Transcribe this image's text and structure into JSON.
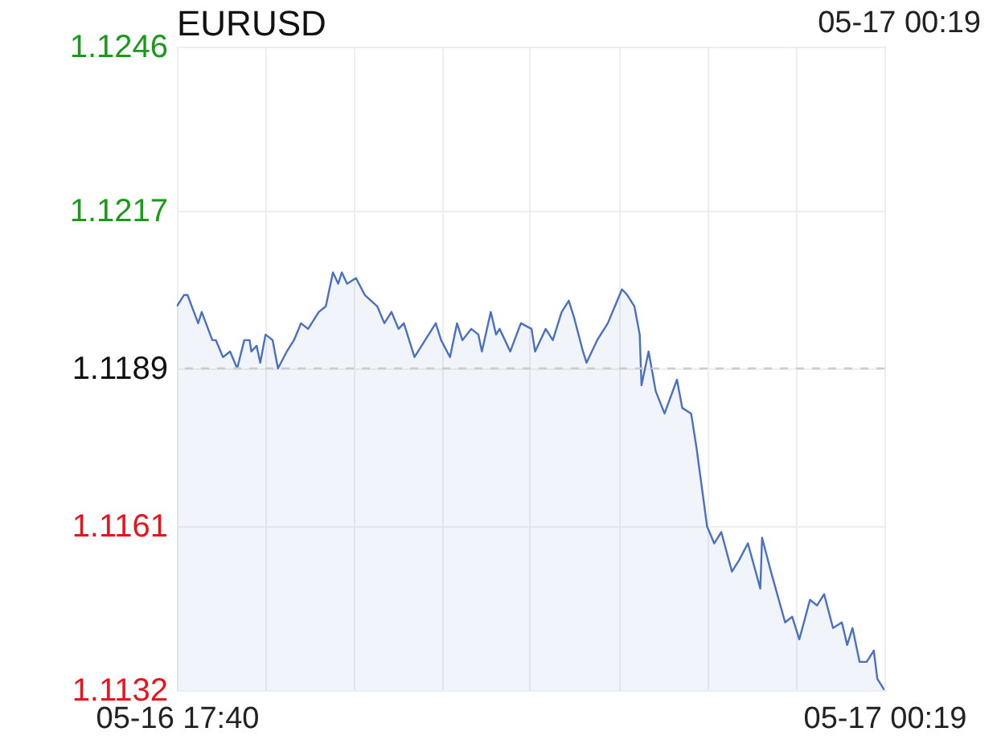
{
  "chart_data": {
    "type": "area",
    "title": "EURUSD",
    "annotations": [
      "05-17 00:19"
    ],
    "x": [
      "--05-16T17:40",
      "--05-16T17:44",
      "--05-16T17:46",
      "--05-16T17:52",
      "--05-16T17:54",
      "--05-16T18:00",
      "--05-16T18:02",
      "--05-16T18:06",
      "--05-16T18:10",
      "--05-16T18:14",
      "--05-16T18:18",
      "--05-16T18:21",
      "--05-16T18:22",
      "--05-16T18:25",
      "--05-16T18:27",
      "--05-16T18:30",
      "--05-16T18:34",
      "--05-16T18:37",
      "--05-16T18:42",
      "--05-16T18:46",
      "--05-16T18:50",
      "--05-16T18:54",
      "--05-16T19:00",
      "--05-16T19:04",
      "--05-16T19:08",
      "--05-16T19:11",
      "--05-16T19:13",
      "--05-16T19:16",
      "--05-16T19:21",
      "--05-16T19:26",
      "--05-16T19:33",
      "--05-16T19:37",
      "--05-16T19:41",
      "--05-16T19:45",
      "--05-16T19:48",
      "--05-16T19:54",
      "--05-16T20:00",
      "--05-16T20:06",
      "--05-16T20:09",
      "--05-16T20:14",
      "--05-16T20:18",
      "--05-16T20:21",
      "--05-16T20:26",
      "--05-16T20:30",
      "--05-16T20:32",
      "--05-16T20:37",
      "--05-16T20:40",
      "--05-16T20:42",
      "--05-16T20:48",
      "--05-16T20:54",
      "--05-16T21:00",
      "--05-16T21:02",
      "--05-16T21:08",
      "--05-16T21:12",
      "--05-16T21:17",
      "--05-16T21:21",
      "--05-16T21:24",
      "--05-16T21:29",
      "--05-16T21:31",
      "--05-16T21:37",
      "--05-16T21:43",
      "--05-16T21:47",
      "--05-16T21:51",
      "--05-16T21:54",
      "--05-16T21:58",
      "--05-16T22:01",
      "--05-16T22:02",
      "--05-16T22:06",
      "--05-16T22:10",
      "--05-16T22:15",
      "--05-16T22:22",
      "--05-16T22:25",
      "--05-16T22:30",
      "--05-16T22:33",
      "--05-16T22:39",
      "--05-16T22:43",
      "--05-16T22:47",
      "--05-16T22:53",
      "--05-16T22:57",
      "--05-16T23:02",
      "--05-16T23:09",
      "--05-16T23:10",
      "--05-16T23:15",
      "--05-16T23:23",
      "--05-16T23:27",
      "--05-16T23:31",
      "--05-16T23:37",
      "--05-16T23:41",
      "--05-16T23:45",
      "--05-16T23:50",
      "--05-16T23:55",
      "--05-16T23:58",
      "--05-17T00:01",
      "--05-17T00:05",
      "--05-17T00:09",
      "--05-17T00:13",
      "--05-17T00:15",
      "--05-17T00:19"
    ],
    "series": [
      {
        "color": "#4a70c0",
        "values": [
          1.12,
          1.1202,
          1.1202,
          1.1197,
          1.1199,
          1.1194,
          1.1194,
          1.1191,
          1.1192,
          1.1189,
          1.1194,
          1.1194,
          1.1192,
          1.1193,
          1.119,
          1.1195,
          1.1194,
          1.1189,
          1.1192,
          1.1194,
          1.1197,
          1.1196,
          1.1199,
          1.12,
          1.1206,
          1.1204,
          1.1206,
          1.1204,
          1.1205,
          1.1202,
          1.12,
          1.1197,
          1.1199,
          1.1196,
          1.1197,
          1.1191,
          1.1194,
          1.1197,
          1.1194,
          1.1191,
          1.1197,
          1.1194,
          1.1196,
          1.1195,
          1.1192,
          1.1199,
          1.1195,
          1.1196,
          1.1192,
          1.1197,
          1.1196,
          1.1192,
          1.1196,
          1.1194,
          1.1199,
          1.1201,
          1.1198,
          1.1192,
          1.119,
          1.1194,
          1.1197,
          1.12,
          1.1203,
          1.1202,
          1.12,
          1.1195,
          1.1186,
          1.1192,
          1.1185,
          1.1181,
          1.1187,
          1.1182,
          1.1181,
          1.1175,
          1.1161,
          1.1158,
          1.116,
          1.1153,
          1.1155,
          1.1158,
          1.115,
          1.1159,
          1.1153,
          1.1144,
          1.1145,
          1.1141,
          1.1148,
          1.1147,
          1.1149,
          1.1143,
          1.1144,
          1.114,
          1.1143,
          1.1137,
          1.1137,
          1.1139,
          1.1134,
          1.1132
        ]
      }
    ],
    "xlim": [
      "--05-16T17:40",
      "--05-17T00:19"
    ],
    "xticks": [
      {
        "value": "--05-16T17:40",
        "label": "05-16 17:40"
      },
      {
        "value": "--05-16T18:30",
        "label": null
      },
      {
        "value": "--05-16T19:20",
        "label": null
      },
      {
        "value": "--05-16T20:10",
        "label": null
      },
      {
        "value": "--05-16T20:59",
        "label": null
      },
      {
        "value": "--05-16T21:49",
        "label": null
      },
      {
        "value": "--05-16T22:39",
        "label": null
      },
      {
        "value": "--05-16T23:29",
        "label": null
      },
      {
        "value": "--05-17T00:19",
        "label": "05-17 00:19"
      }
    ],
    "ylim": [
      1.1132,
      1.1246
    ],
    "yticks": [
      1.1132,
      1.1161,
      1.1189,
      1.1217,
      1.1246
    ],
    "grid": true,
    "ref_lines": [
      {
        "axis": "y",
        "value": 1.1189,
        "color": "#cccccc",
        "line_style": "dashed"
      }
    ]
  }
}
